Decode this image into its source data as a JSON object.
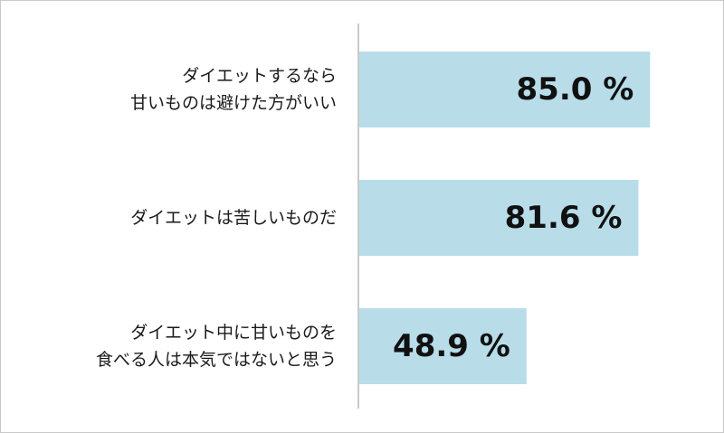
{
  "colors": {
    "bar": "#b8dde9",
    "axis": "#a6a6a6",
    "text": "#1a1a1a",
    "border": "#c9c9c9"
  },
  "chart_data": {
    "type": "bar",
    "orientation": "horizontal",
    "title": "",
    "xlabel": "",
    "ylabel": "",
    "xlim": [
      0,
      100
    ],
    "grid": false,
    "unit": "%",
    "categories": [
      [
        "ダイエットするなら",
        "甘いものは避けた方がいい"
      ],
      [
        "ダイエットは苦しいものだ"
      ],
      [
        "ダイエット中に甘いものを",
        "食べる人は本気ではないと思う"
      ]
    ],
    "values": [
      85.0,
      81.6,
      48.9
    ],
    "value_labels": [
      "85.0 %",
      "81.6 %",
      "48.9 %"
    ]
  }
}
